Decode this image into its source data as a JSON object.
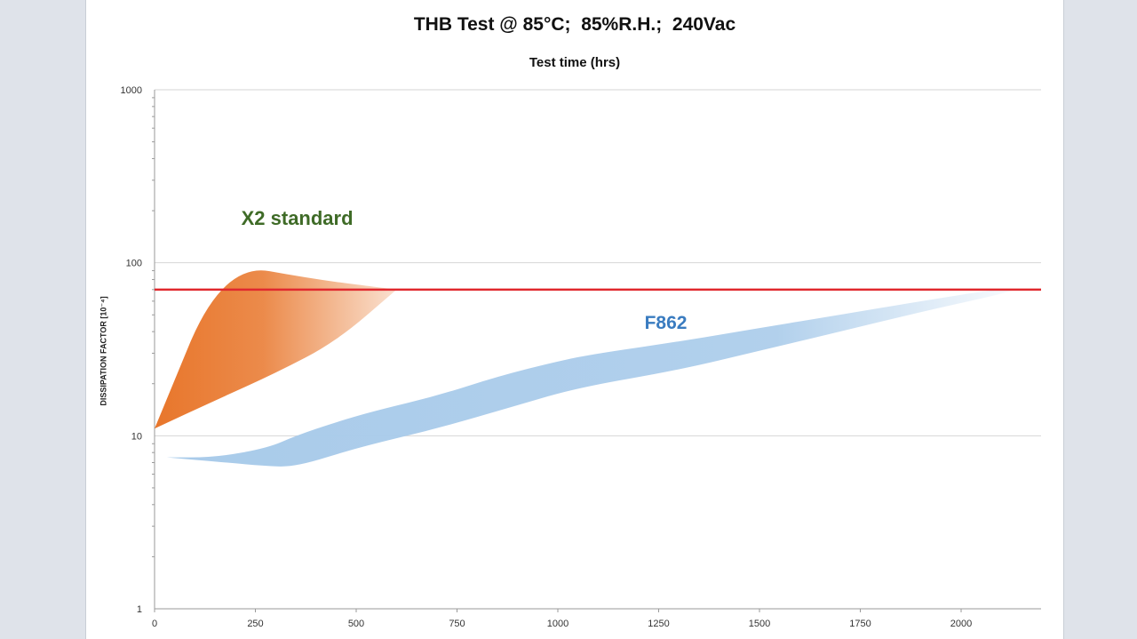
{
  "chart_data": {
    "type": "area",
    "title": "THB Test @ 85°C;  85%R.H.;  240Vac",
    "xlabel": "Test time (hrs)",
    "ylabel": "DISSIPATION FACTOR [10⁻⁴]",
    "yscale": "log",
    "ylim": [
      1,
      1000
    ],
    "xlim": [
      0,
      2200
    ],
    "x_ticks": [
      "0",
      "250",
      "500",
      "750",
      "1000",
      "1250",
      "1500",
      "1750",
      "2000"
    ],
    "y_ticks": [
      "1",
      "10",
      "100",
      "1000"
    ],
    "grid": "horizontal",
    "colors": {
      "x2_band": "#e8762b",
      "f862_band": "#a9cbea",
      "limit_line": "#e0282e",
      "x2_label": "#3f6b27",
      "f862_label": "#3a7cc0"
    },
    "limit_line": {
      "y": 70
    },
    "series": [
      {
        "name": "X2 standard",
        "upper": {
          "x": [
            0,
            170,
            400,
            600
          ],
          "y": [
            11,
            100,
            80,
            70
          ]
        },
        "lower": {
          "x": [
            0,
            150,
            300,
            450,
            600
          ],
          "y": [
            11,
            16,
            23,
            35,
            70
          ]
        }
      },
      {
        "name": "F862",
        "upper": {
          "x": [
            30,
            150,
            280,
            350,
            450,
            550,
            700,
            850,
            1000,
            1100,
            1300,
            1500,
            1700,
            1900,
            2100
          ],
          "y": [
            7.5,
            7.5,
            8.5,
            10,
            12,
            14,
            17,
            22,
            27,
            30,
            35,
            42,
            50,
            60,
            71
          ]
        },
        "lower": {
          "x": [
            30,
            180,
            270,
            350,
            500,
            700,
            900,
            1050,
            1300,
            1500,
            1700,
            1900,
            2150
          ],
          "y": [
            7.5,
            7,
            6.7,
            6.6,
            8.5,
            11,
            15,
            19,
            24,
            31,
            40,
            52,
            70
          ]
        }
      }
    ]
  }
}
